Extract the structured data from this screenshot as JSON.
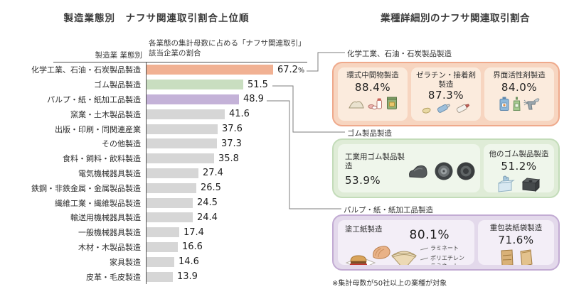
{
  "left_chart": {
    "title": "製造業態別　ナフサ関連取引割合上位順",
    "axis_label": "製造業 業態別",
    "value_header_line1": "各業態の集計母数に占める「ナフサ関連取引」",
    "value_header_line2": "該当企業の割合",
    "rows": [
      {
        "label": "化学工業、石油・石炭製品製造",
        "value": 67.2,
        "display": "67.2",
        "unit": "%",
        "color": "#f1b193"
      },
      {
        "label": "ゴム製品製造",
        "value": 51.5,
        "display": "51.5",
        "unit": "",
        "color": "#c9dec0"
      },
      {
        "label": "パルプ・紙・紙加工品製造",
        "value": 48.9,
        "display": "48.9",
        "unit": "",
        "color": "#c4b2d8"
      },
      {
        "label": "窯業・土木製品製造",
        "value": 41.6,
        "display": "41.6",
        "unit": "",
        "color": "#d6d6d6"
      },
      {
        "label": "出版・印刷・同関連産業",
        "value": 37.6,
        "display": "37.6",
        "unit": "",
        "color": "#d6d6d6"
      },
      {
        "label": "その他製造",
        "value": 37.3,
        "display": "37.3",
        "unit": "",
        "color": "#d6d6d6"
      },
      {
        "label": "食料・飼料・飲料製造",
        "value": 35.8,
        "display": "35.8",
        "unit": "",
        "color": "#d6d6d6"
      },
      {
        "label": "電気機械器具製造",
        "value": 27.4,
        "display": "27.4",
        "unit": "",
        "color": "#d6d6d6"
      },
      {
        "label": "鉄鋼・非鉄金属・金属製品製造",
        "value": 26.5,
        "display": "26.5",
        "unit": "",
        "color": "#d6d6d6"
      },
      {
        "label": "繊維工業・繊維製品製造",
        "value": 24.5,
        "display": "24.5",
        "unit": "",
        "color": "#d6d6d6"
      },
      {
        "label": "輸送用機械器具製造",
        "value": 24.4,
        "display": "24.4",
        "unit": "",
        "color": "#d6d6d6"
      },
      {
        "label": "一般機械器具製造",
        "value": 17.4,
        "display": "17.4",
        "unit": "",
        "color": "#d6d6d6"
      },
      {
        "label": "木材・木製品製造",
        "value": 16.6,
        "display": "16.6",
        "unit": "",
        "color": "#d6d6d6"
      },
      {
        "label": "家具製造",
        "value": 14.6,
        "display": "14.6",
        "unit": "",
        "color": "#d6d6d6"
      },
      {
        "label": "皮革・毛皮製造",
        "value": 13.9,
        "display": "13.9",
        "unit": "",
        "color": "#d6d6d6"
      }
    ]
  },
  "right_panel": {
    "title": "業種詳細別のナフサ関連取引割合",
    "footnote": "※集計母数が50社以上の業種が対象",
    "groups": [
      {
        "label": "化学工業、石油・石炭製品製造",
        "theme": "orange",
        "accent": "#efa98b",
        "cards": [
          {
            "name": "環式中間物製造",
            "pct": "88.4%",
            "icons": [
              "powder-icon",
              "pill-bottle-icon",
              "chemical-bag-icon"
            ]
          },
          {
            "name": "ゼラチン・接着剤\n製造",
            "pct": "87.3%",
            "icons": [
              "paste-blob-icon",
              "glue-tube-icon",
              "glue-tube-icon"
            ]
          },
          {
            "name": "界面活性剤製造",
            "pct": "84.0%",
            "icons": [
              "detergent-jug-icon",
              "soap-pump-icon",
              "spray-gun-icon"
            ]
          }
        ]
      },
      {
        "label": "ゴム製品製造",
        "theme": "green",
        "accent": "#c3dcb9",
        "cards": [
          {
            "name": "工業用ゴム製品製造",
            "pct": "53.9%",
            "icons": [
              "rubber-part-icon",
              "tire-icon",
              "tire-icon"
            ]
          },
          {
            "name": "他のゴム製品製造",
            "pct": "51.2%",
            "icons": [
              "glove-box-icon",
              "rubber-block-icon"
            ]
          }
        ]
      },
      {
        "label": "パルプ・紙・紙加工品製造",
        "theme": "purple",
        "accent": "#c2abd3",
        "cards": [
          {
            "name": "塗工紙製造",
            "pct": "80.1%",
            "icons": [
              "burger-icon",
              "wrap-icon",
              "paper-cone-icon"
            ],
            "annotations": [
              "ラミネート",
              "ポリエチレン\nラミネート"
            ]
          },
          {
            "name": "重包装紙袋製造",
            "pct": "71.6%",
            "icons": [
              "paper-bag-icon",
              "paper-bag-icon"
            ]
          }
        ]
      }
    ]
  },
  "chart_data": {
    "type": "bar",
    "orientation": "horizontal",
    "title": "製造業態別　ナフサ関連取引割合上位順",
    "xlabel": "各業態の集計母数に占める「ナフサ関連取引」該当企業の割合",
    "ylabel": "製造業 業態別",
    "unit": "%",
    "xlim": [
      0,
      100
    ],
    "grid": false,
    "categories": [
      "化学工業、石油・石炭製品製造",
      "ゴム製品製造",
      "パルプ・紙・紙加工品製造",
      "窯業・土木製品製造",
      "出版・印刷・同関連産業",
      "その他製造",
      "食料・飼料・飲料製造",
      "電気機械器具製造",
      "鉄鋼・非鉄金属・金属製品製造",
      "繊維工業・繊維製品製造",
      "輸送用機械器具製造",
      "一般機械器具製造",
      "木材・木製品製造",
      "家具製造",
      "皮革・毛皮製造"
    ],
    "values": [
      67.2,
      51.5,
      48.9,
      41.6,
      37.6,
      37.3,
      35.8,
      27.4,
      26.5,
      24.5,
      24.4,
      17.4,
      16.6,
      14.6,
      13.9
    ],
    "bar_colors": [
      "#f1b193",
      "#c9dec0",
      "#c4b2d8",
      "#d6d6d6",
      "#d6d6d6",
      "#d6d6d6",
      "#d6d6d6",
      "#d6d6d6",
      "#d6d6d6",
      "#d6d6d6",
      "#d6d6d6",
      "#d6d6d6",
      "#d6d6d6",
      "#d6d6d6",
      "#d6d6d6"
    ],
    "detail_title": "業種詳細別のナフサ関連取引割合",
    "detail_groups": [
      {
        "group": "化学工業、石油・石炭製品製造",
        "items": [
          {
            "name": "環式中間物製造",
            "value": 88.4
          },
          {
            "name": "ゼラチン・接着剤製造",
            "value": 87.3
          },
          {
            "name": "界面活性剤製造",
            "value": 84.0
          }
        ]
      },
      {
        "group": "ゴム製品製造",
        "items": [
          {
            "name": "工業用ゴム製品製造",
            "value": 53.9
          },
          {
            "name": "他のゴム製品製造",
            "value": 51.2
          }
        ]
      },
      {
        "group": "パルプ・紙・紙加工品製造",
        "items": [
          {
            "name": "塗工紙製造",
            "value": 80.1
          },
          {
            "name": "重包装紙袋製造",
            "value": 71.6
          }
        ]
      }
    ],
    "footnote": "※集計母数が50社以上の業種が対象"
  }
}
